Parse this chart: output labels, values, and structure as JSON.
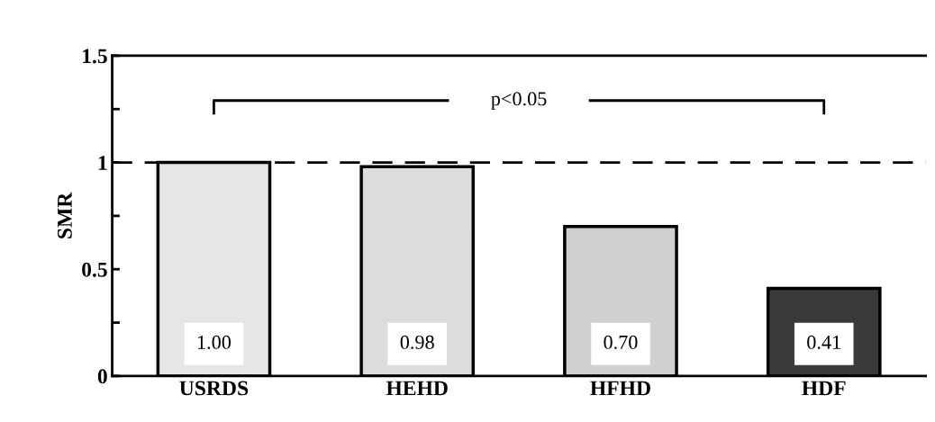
{
  "chart_data": {
    "type": "bar",
    "ylabel": "SMR",
    "categories": [
      "USRDS",
      "HEHD",
      "HFHD",
      "HDF"
    ],
    "values": [
      1.0,
      0.98,
      0.7,
      0.41
    ],
    "value_labels": [
      "1.00",
      "0.98",
      "0.70",
      "0.41"
    ],
    "colors": [
      "#e6e6e6",
      "#dcdcdc",
      "#d0d0d0",
      "#3a3a3a"
    ],
    "ylim": [
      0,
      1.5
    ],
    "yticks": [
      0,
      {
        "value": 0.25,
        "label": null
      },
      0.5,
      {
        "value": 0.75,
        "label": null
      },
      1,
      {
        "value": 1.25,
        "label": null
      },
      1.5
    ],
    "ref_lines": [
      {
        "axis": "y",
        "value": 1,
        "line_style": "dashed",
        "color": "#000000"
      }
    ],
    "annotations": [
      "p<0.05"
    ],
    "grid": false,
    "legend": false
  }
}
